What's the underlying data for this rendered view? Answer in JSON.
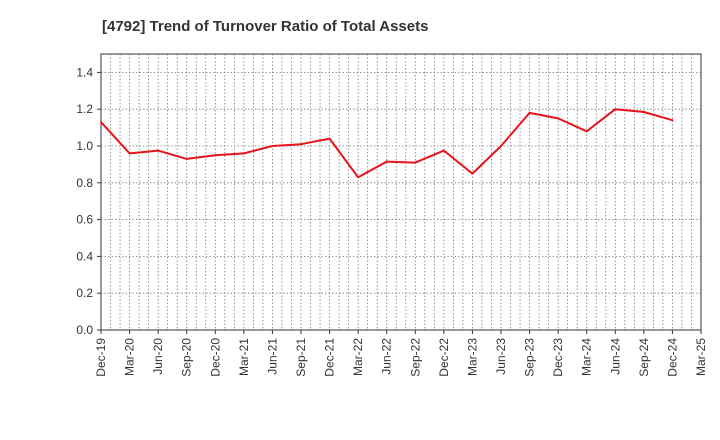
{
  "chart_data": {
    "type": "line",
    "title": "[4792]  Trend of Turnover Ratio of Total Assets",
    "xlabel": "",
    "ylabel": "",
    "categories": [
      "Dec-19",
      "Mar-20",
      "Jun-20",
      "Sep-20",
      "Dec-20",
      "Mar-21",
      "Jun-21",
      "Sep-21",
      "Dec-21",
      "Mar-22",
      "Jun-22",
      "Sep-22",
      "Dec-22",
      "Mar-23",
      "Jun-23",
      "Sep-23",
      "Dec-23",
      "Mar-24",
      "Jun-24",
      "Sep-24",
      "Dec-24",
      "Mar-25"
    ],
    "series": [
      {
        "values": [
          1.13,
          0.96,
          0.975,
          0.93,
          0.95,
          0.96,
          1.0,
          1.01,
          1.04,
          0.83,
          0.915,
          0.91,
          0.975,
          0.85,
          1.0,
          1.18,
          1.15,
          1.08,
          1.2,
          1.185,
          1.14,
          null
        ],
        "color": "#e8141c"
      }
    ],
    "ylim": [
      0,
      1.5
    ],
    "yticks": [
      "0.0",
      "0.2",
      "0.4",
      "0.6",
      "0.8",
      "1.0",
      "1.2",
      "1.4"
    ],
    "grid": true
  }
}
